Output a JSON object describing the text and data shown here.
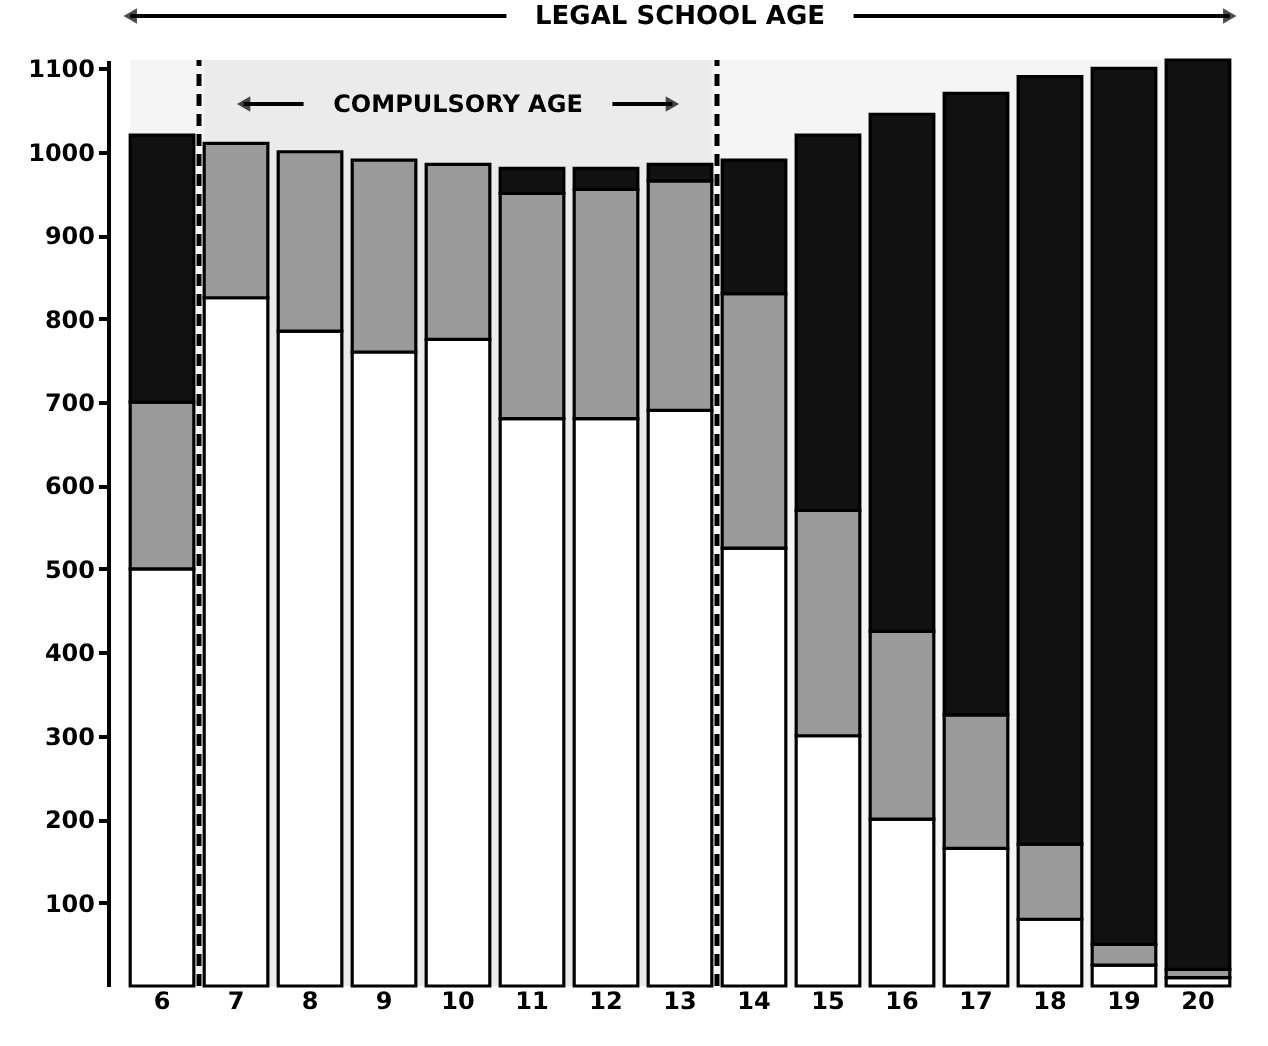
{
  "chart_data": {
    "type": "bar",
    "stacked": true,
    "categories": [
      "6",
      "7",
      "8",
      "9",
      "10",
      "11",
      "12",
      "13",
      "14",
      "15",
      "16",
      "17",
      "18",
      "19",
      "20"
    ],
    "series": [
      {
        "color": "#ffffff",
        "values": [
          500,
          825,
          785,
          760,
          775,
          680,
          680,
          690,
          525,
          300,
          200,
          165,
          80,
          25,
          10
        ]
      },
      {
        "color": "#9a9a9a",
        "values": [
          200,
          185,
          215,
          230,
          210,
          270,
          275,
          275,
          305,
          270,
          225,
          160,
          90,
          25,
          10
        ]
      },
      {
        "color": "#111111",
        "values": [
          320,
          null,
          null,
          null,
          null,
          30,
          25,
          20,
          160,
          450,
          620,
          745,
          920,
          1050,
          1090
        ]
      }
    ],
    "ylim": [
      0,
      1110
    ],
    "yticks": [
      100,
      200,
      300,
      400,
      500,
      600,
      700,
      800,
      900,
      1000,
      1100
    ],
    "bands": [
      {
        "axis": "x",
        "from": "6",
        "to": "20",
        "label": "LEGAL SCHOOL AGE"
      },
      {
        "axis": "x",
        "from": "7",
        "to": "13",
        "label": "COMPULSORY AGE",
        "color": "#000000"
      }
    ]
  }
}
